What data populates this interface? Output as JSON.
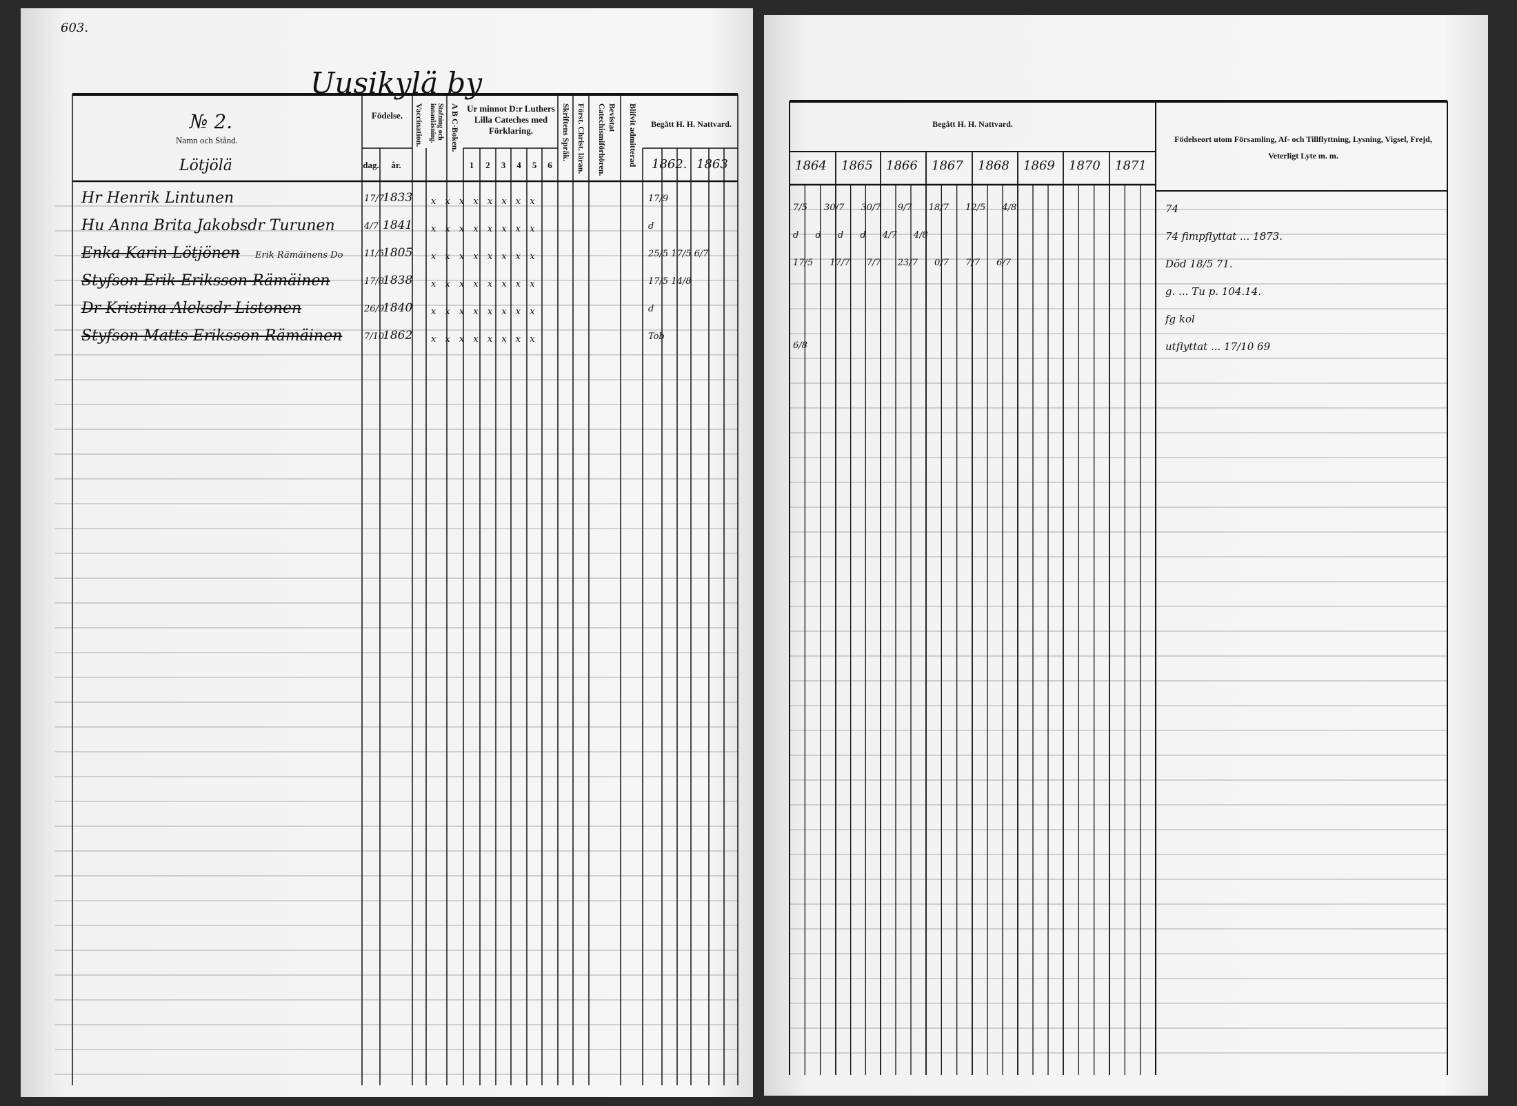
{
  "page_number": "603.",
  "left_page": {
    "title": "Uusikylä by",
    "header": {
      "number": "№ 2.",
      "name_label": "Namn och Stånd.",
      "farm": "Lötjölä",
      "birth": "Födelse.",
      "day": "dag.",
      "year": "år.",
      "vaccination": "Vaccination.",
      "reading": "Stafning och innanläsning.",
      "abc": "A B C-Boken.",
      "catechism": "Ur minnot D:r Luthers Lilla Cateches med Förklaring.",
      "catechism_cols": [
        "1",
        "2",
        "3",
        "4",
        "5",
        "6"
      ],
      "scripture": "Skriftens Språk.",
      "first_christian": "Först. Christ. läran.",
      "attended_exams": "Bevistat Catechismiförhören.",
      "admitted": "Blifvit admitterad",
      "communion": "Begått H. H. Nattvard.",
      "communion_years": [
        "1862.",
        "1863"
      ]
    },
    "rows": [
      {
        "name": "Hr Henrik Lintunen",
        "struck": false,
        "day": "17/7",
        "year": "1833",
        "marks": "x x x x x x x x",
        "note": "",
        "communion": "17/9"
      },
      {
        "name": "Hu Anna Brita Jakobsdr Turunen",
        "struck": false,
        "day": "4/7",
        "year": "1841",
        "marks": "x x x x x x x x",
        "note": "",
        "communion": "d"
      },
      {
        "name": "Enka Karin Lötjönen",
        "struck": true,
        "day": "11/5",
        "year": "1805",
        "marks": "x x x x x x x x",
        "note": "Erik Rämäinens Do",
        "communion": "25/5  17/5  6/7"
      },
      {
        "name": "Styfson Erik Eriksson Rämäinen",
        "struck": true,
        "day": "17/8",
        "year": "1838",
        "marks": "x x x x x x x x",
        "note": "",
        "communion": "17/5  14/8"
      },
      {
        "name": "Dr Kristina Aleksdr Listonen",
        "struck": true,
        "day": "26/9",
        "year": "1840",
        "marks": "x x x x x x x x",
        "note": "",
        "communion": "d"
      },
      {
        "name": "Styfson Matts Eriksson Rämäinen",
        "struck": true,
        "day": "7/10",
        "year": "1862",
        "marks": "x x x x x x x x",
        "note": "",
        "communion": "Tob"
      }
    ]
  },
  "right_page": {
    "header": {
      "communion": "Begått H. H. Nattvard.",
      "years": [
        "1864",
        "1865",
        "1866",
        "1867",
        "1868",
        "1869",
        "1870",
        "1871"
      ],
      "remarks": "Födelseort utom Församling, Af- och Tillflyttning, Lysning, Vigsel, Frejd, Veterligt Lyte m. m."
    },
    "rows": [
      {
        "communion": "7/5   30/7   30/7   9/7   18/7   12/5   4/8",
        "remark": "74"
      },
      {
        "communion": "d   d   d   d   4/7   4/8",
        "remark": "74 fimpflyttat ... 1873."
      },
      {
        "communion": "17/5   17/7   7/7   23/7   0/7   7/7   6/7",
        "remark": "Död 18/5 71."
      },
      {
        "communion": "",
        "remark": "g. ... Tu p. 104.14."
      },
      {
        "communion": "",
        "remark": "fg kol"
      },
      {
        "communion": "6/8",
        "remark": "utflyttat ... 17/10 69"
      }
    ]
  }
}
